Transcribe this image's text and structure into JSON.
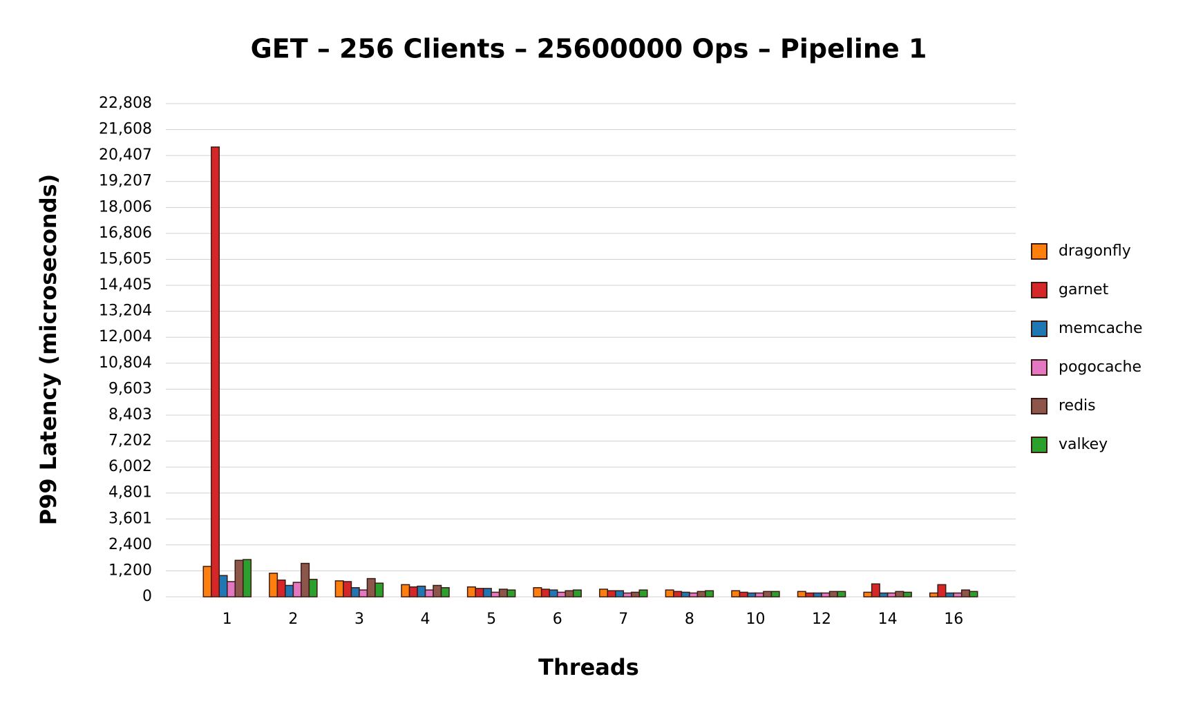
{
  "chart_data": {
    "type": "bar",
    "title": "GET – 256 Clients – 25600000 Ops – Pipeline 1",
    "x_label": "Threads",
    "y_label": "P99 Latency (microseconds)",
    "categories": [
      "1",
      "2",
      "3",
      "4",
      "5",
      "6",
      "7",
      "8",
      "10",
      "12",
      "14",
      "16"
    ],
    "series": [
      {
        "name": "dragonfly",
        "color": "#ff7f0e",
        "values": [
          1405,
          1090,
          738,
          562,
          457,
          422,
          351,
          316,
          281,
          246,
          211,
          176
        ]
      },
      {
        "name": "garnet",
        "color": "#d62728",
        "values": [
          20800,
          773,
          703,
          457,
          387,
          351,
          281,
          246,
          211,
          176,
          597,
          562
        ]
      },
      {
        "name": "memcache",
        "color": "#1f77b4",
        "values": [
          984,
          527,
          422,
          492,
          387,
          316,
          281,
          211,
          176,
          176,
          176,
          176
        ]
      },
      {
        "name": "pogocache",
        "color": "#e377c2",
        "values": [
          703,
          668,
          316,
          316,
          211,
          211,
          176,
          176,
          176,
          176,
          176,
          176
        ]
      },
      {
        "name": "redis",
        "color": "#8c564b",
        "values": [
          1687,
          1546,
          843,
          527,
          351,
          281,
          211,
          246,
          246,
          246,
          246,
          316
        ]
      },
      {
        "name": "valkey",
        "color": "#2ca02c",
        "values": [
          1722,
          808,
          632,
          422,
          316,
          316,
          316,
          281,
          246,
          246,
          211,
          246
        ]
      }
    ],
    "ylim": [
      0,
      22808
    ],
    "yticks": [
      0,
      {
        "value": 1200,
        "label": "1,200"
      },
      {
        "value": 2400,
        "label": "2,400"
      },
      {
        "value": 3601,
        "label": "3,601"
      },
      {
        "value": 4801,
        "label": "4,801"
      },
      {
        "value": 6002,
        "label": "6,002"
      },
      {
        "value": 7202,
        "label": "7,202"
      },
      {
        "value": 8403,
        "label": "8,403"
      },
      {
        "value": 9603,
        "label": "9,603"
      },
      {
        "value": 10804,
        "label": "10,804"
      },
      {
        "value": 12004,
        "label": "12,004"
      },
      {
        "value": 13204,
        "label": "13,204"
      },
      {
        "value": 14405,
        "label": "14,405"
      },
      {
        "value": 15605,
        "label": "15,605"
      },
      {
        "value": 16806,
        "label": "16,806"
      },
      {
        "value": 18006,
        "label": "18,006"
      },
      {
        "value": 19207,
        "label": "19,207"
      },
      {
        "value": 20407,
        "label": "20,407"
      },
      {
        "value": 21608,
        "label": "21,608"
      },
      {
        "value": 22808,
        "label": "22,808"
      }
    ],
    "grid": true,
    "legend": "right"
  }
}
